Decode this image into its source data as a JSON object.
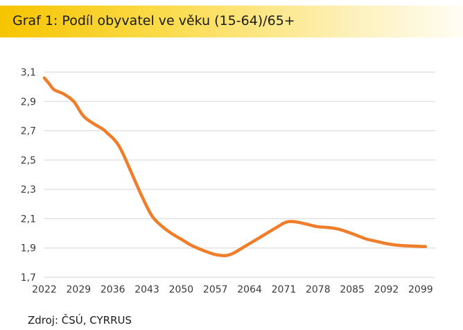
{
  "header": {
    "title": "Graf 1: Podíl obyvatel ve věku (15-64)/65+"
  },
  "footer": {
    "source": "Zdroj: ČSÚ, CYRRUS"
  },
  "colors": {
    "series": "#f07d2a",
    "grid": "#d6d6d6",
    "title_bar": "#f6c400"
  },
  "chart_data": {
    "type": "line",
    "title": "Graf 1: Podíl obyvatel ve věku (15-64)/65+",
    "xlabel": "",
    "ylabel": "",
    "xlim": [
      2022,
      2102
    ],
    "ylim": [
      1.7,
      3.1
    ],
    "grid": "horizontal",
    "legend": "none",
    "x_ticks": [
      "2022",
      "2029",
      "2036",
      "2043",
      "2050",
      "2057",
      "2064",
      "2071",
      "2078",
      "2085",
      "2092",
      "2099"
    ],
    "y_ticks": [
      "1,7",
      "1,9",
      "2,1",
      "2,3",
      "2,5",
      "2,7",
      "2,9",
      "3,1"
    ],
    "series": [
      {
        "x": [
          2022,
          2023,
          2024,
          2026,
          2028,
          2030,
          2032,
          2034,
          2035,
          2036,
          2037,
          2038,
          2040,
          2042,
          2044,
          2046,
          2048,
          2050,
          2052,
          2054,
          2056,
          2057,
          2058,
          2059,
          2060,
          2061,
          2062,
          2064,
          2066,
          2068,
          2070,
          2071,
          2072,
          2073,
          2074,
          2076,
          2078,
          2080,
          2082,
          2084,
          2086,
          2088,
          2090,
          2092,
          2094,
          2096,
          2098,
          2100
        ],
        "y": [
          3.06,
          3.02,
          2.98,
          2.95,
          2.9,
          2.8,
          2.75,
          2.71,
          2.68,
          2.65,
          2.61,
          2.55,
          2.4,
          2.25,
          2.12,
          2.05,
          2.0,
          1.96,
          1.92,
          1.89,
          1.865,
          1.855,
          1.85,
          1.848,
          1.855,
          1.87,
          1.89,
          1.93,
          1.97,
          2.01,
          2.05,
          2.07,
          2.08,
          2.08,
          2.075,
          2.06,
          2.045,
          2.04,
          2.03,
          2.01,
          1.985,
          1.96,
          1.945,
          1.93,
          1.92,
          1.915,
          1.912,
          1.91
        ]
      }
    ]
  }
}
